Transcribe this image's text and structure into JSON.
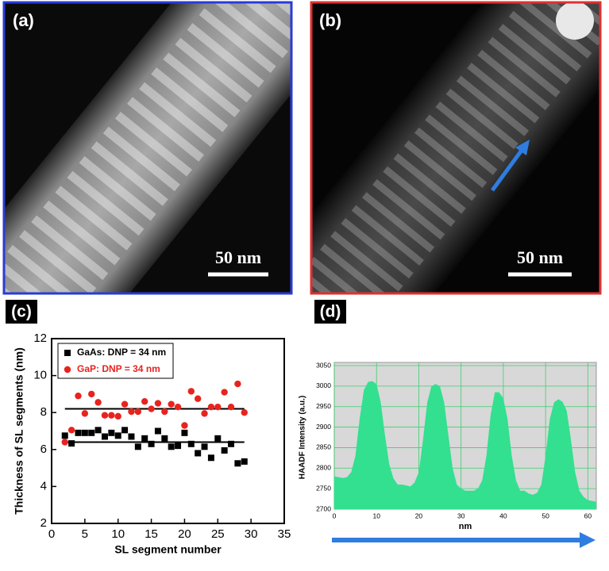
{
  "panels": {
    "a": {
      "label": "(a)",
      "scale_bar": "50 nm"
    },
    "b": {
      "label": "(b)",
      "scale_bar": "50 nm"
    },
    "c": {
      "label": "(c)"
    },
    "d": {
      "label": "(d)"
    }
  },
  "chart_data": [
    {
      "type": "scatter",
      "x_label": "SL segment number",
      "y_label": "Thickness of SL segments (nm)",
      "xlim": [
        0,
        35
      ],
      "ylim": [
        2,
        12
      ],
      "xticks": [
        0,
        5,
        10,
        15,
        20,
        25,
        30,
        35
      ],
      "yticks": [
        2,
        4,
        6,
        8,
        10,
        12
      ],
      "x": [
        2,
        3,
        4,
        5,
        6,
        7,
        8,
        9,
        10,
        11,
        12,
        13,
        14,
        15,
        16,
        17,
        18,
        19,
        20,
        21,
        22,
        23,
        24,
        25,
        26,
        27,
        28,
        29
      ],
      "series": [
        {
          "name": "GaAs: DNP = 34 nm",
          "color": "#000000",
          "marker": "square",
          "values": [
            6.75,
            6.33,
            6.9,
            6.9,
            6.9,
            7.05,
            6.7,
            6.9,
            6.75,
            7.05,
            6.7,
            6.15,
            6.6,
            6.3,
            7.0,
            6.6,
            6.15,
            6.2,
            6.9,
            6.3,
            5.8,
            6.15,
            5.55,
            6.6,
            5.95,
            6.3,
            5.25,
            5.35
          ]
        },
        {
          "name": "GaP: DNP = 34 nm",
          "color": "#e8231e",
          "marker": "circle",
          "values": [
            6.4,
            7.05,
            8.9,
            7.95,
            9.0,
            8.55,
            7.85,
            7.85,
            7.8,
            8.45,
            8.05,
            8.05,
            8.6,
            8.2,
            8.5,
            8.05,
            8.45,
            8.3,
            7.3,
            9.15,
            8.75,
            7.95,
            8.3,
            8.3,
            9.1,
            8.3,
            9.55,
            8.0
          ]
        }
      ],
      "hlines": [
        8.2,
        6.4
      ],
      "legend": "upper left"
    },
    {
      "type": "area",
      "x_label": "nm",
      "y_label": "HAADF Intensity (a.u.)",
      "color": "#33e08f",
      "background": "#d8d8d8",
      "grid": true,
      "xlim": [
        0,
        62
      ],
      "ylim": [
        2700,
        3050
      ],
      "xticks": [
        0,
        10,
        20,
        30,
        40,
        50,
        60
      ],
      "yticks": [
        2700,
        2750,
        2800,
        2850,
        2900,
        2950,
        3000,
        3050
      ],
      "x": [
        0,
        1,
        2,
        3,
        4,
        5,
        6,
        7,
        8,
        9,
        10,
        11,
        12,
        13,
        14,
        15,
        16,
        17,
        18,
        19,
        20,
        21,
        22,
        23,
        24,
        25,
        26,
        27,
        28,
        29,
        30,
        31,
        32,
        33,
        34,
        35,
        36,
        37,
        38,
        39,
        40,
        41,
        42,
        43,
        44,
        45,
        46,
        47,
        48,
        49,
        50,
        51,
        52,
        53,
        54,
        55,
        56,
        57,
        58,
        59,
        60,
        61,
        62
      ],
      "values": [
        2780,
        2778,
        2776,
        2778,
        2790,
        2830,
        2920,
        2990,
        3010,
        3012,
        3005,
        2960,
        2880,
        2810,
        2775,
        2760,
        2760,
        2758,
        2755,
        2765,
        2790,
        2870,
        2960,
        3000,
        3005,
        3000,
        2960,
        2880,
        2800,
        2760,
        2750,
        2745,
        2745,
        2745,
        2750,
        2770,
        2830,
        2930,
        2985,
        2985,
        2970,
        2920,
        2830,
        2770,
        2745,
        2745,
        2738,
        2735,
        2740,
        2760,
        2830,
        2920,
        2960,
        2968,
        2962,
        2940,
        2870,
        2790,
        2745,
        2730,
        2722,
        2720,
        2718
      ]
    }
  ]
}
